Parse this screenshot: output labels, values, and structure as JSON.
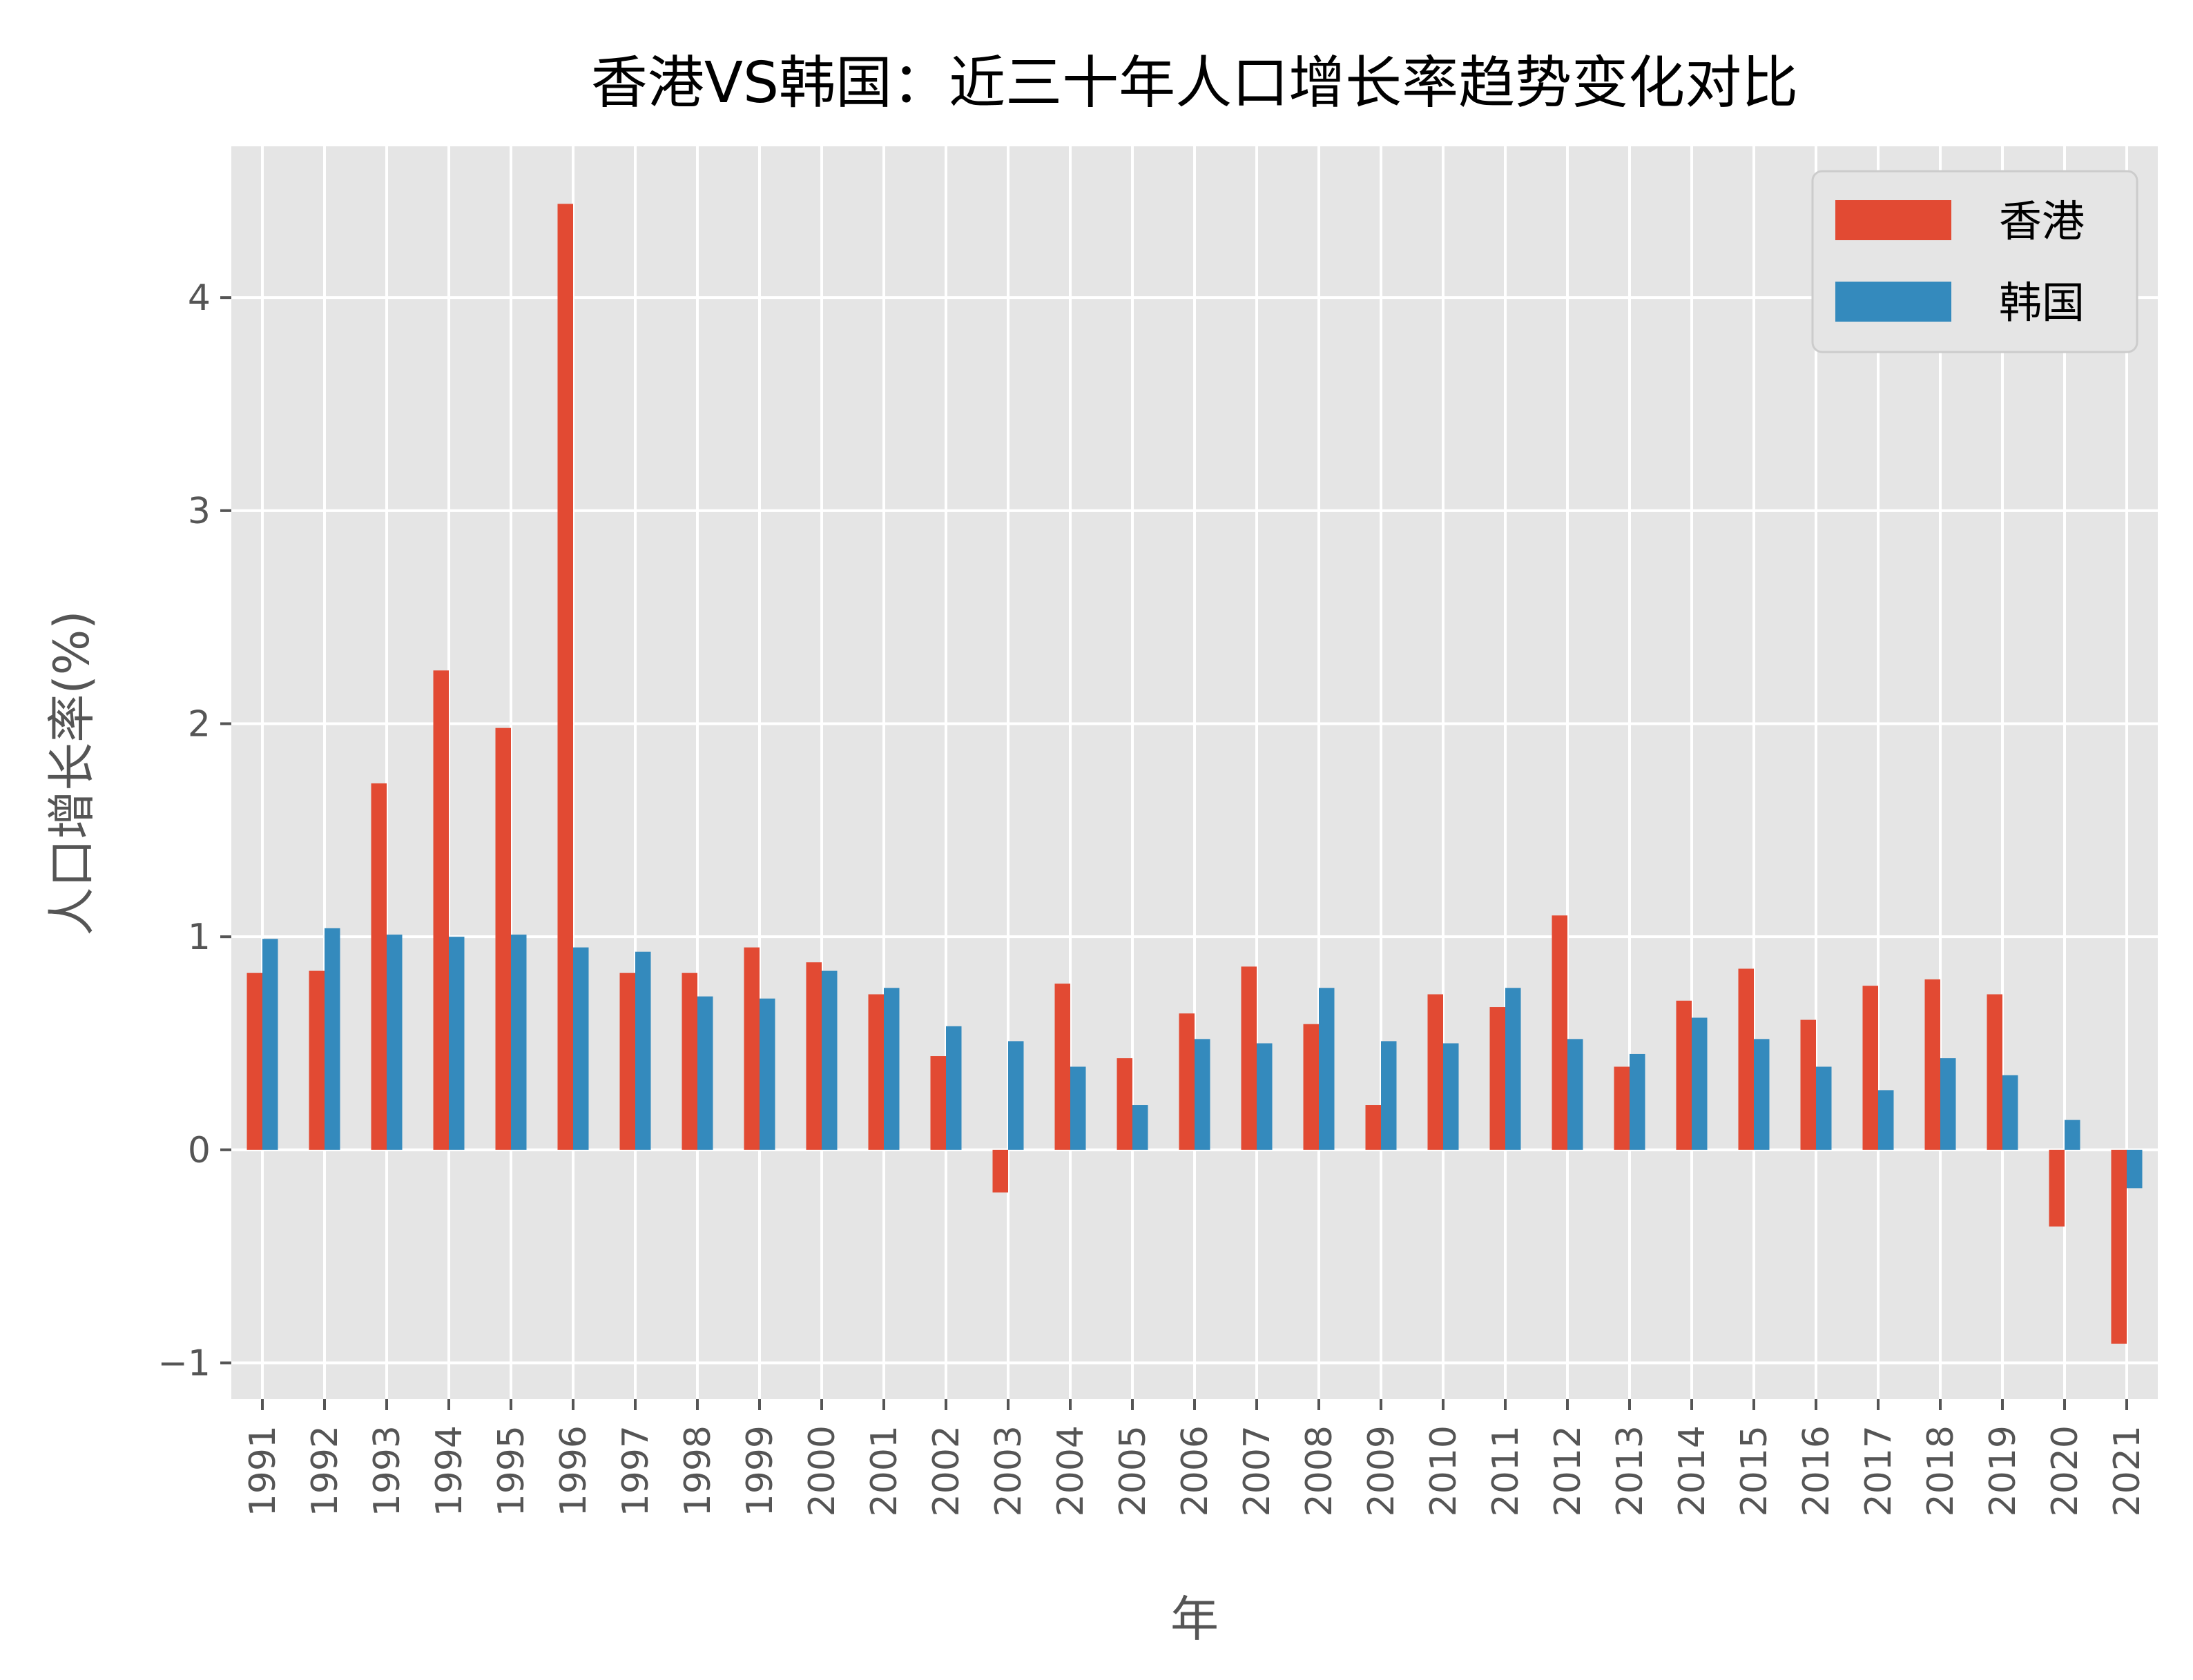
{
  "chart_data": {
    "type": "bar",
    "title": "香港VS韩国：近三十年人口增长率趋势变化对比",
    "xlabel": "年",
    "ylabel": "人口增长率(%)",
    "categories": [
      "1991",
      "1992",
      "1993",
      "1994",
      "1995",
      "1996",
      "1997",
      "1998",
      "1999",
      "2000",
      "2001",
      "2002",
      "2003",
      "2004",
      "2005",
      "2006",
      "2007",
      "2008",
      "2009",
      "2010",
      "2011",
      "2012",
      "2013",
      "2014",
      "2015",
      "2016",
      "2017",
      "2018",
      "2019",
      "2020",
      "2021"
    ],
    "series": [
      {
        "name": "香港",
        "color": "#E24A33",
        "values": [
          0.83,
          0.84,
          1.72,
          2.25,
          1.98,
          4.44,
          0.83,
          0.83,
          0.95,
          0.88,
          0.73,
          0.44,
          -0.2,
          0.78,
          0.43,
          0.64,
          0.86,
          0.59,
          0.21,
          0.73,
          0.67,
          1.1,
          0.39,
          0.7,
          0.85,
          0.61,
          0.77,
          0.8,
          0.73,
          -0.36,
          -0.91
        ]
      },
      {
        "name": "韩国",
        "color": "#348ABD",
        "values": [
          0.99,
          1.04,
          1.01,
          1.0,
          1.01,
          0.95,
          0.93,
          0.72,
          0.71,
          0.84,
          0.76,
          0.58,
          0.51,
          0.39,
          0.21,
          0.52,
          0.5,
          0.76,
          0.51,
          0.5,
          0.76,
          0.52,
          0.45,
          0.62,
          0.52,
          0.39,
          0.28,
          0.43,
          0.35,
          0.14,
          -0.18
        ]
      }
    ],
    "ylim": [
      -1.17,
      4.71
    ],
    "yticks": [
      "−1",
      "0",
      "1",
      "2",
      "3",
      "4"
    ],
    "ytick_values": [
      -1,
      0,
      1,
      2,
      3,
      4
    ],
    "grid": true,
    "legend_position": "top-right",
    "style": {
      "background": "#E5E5E5",
      "grid_color": "#FFFFFF",
      "text_color": "#555555"
    }
  }
}
